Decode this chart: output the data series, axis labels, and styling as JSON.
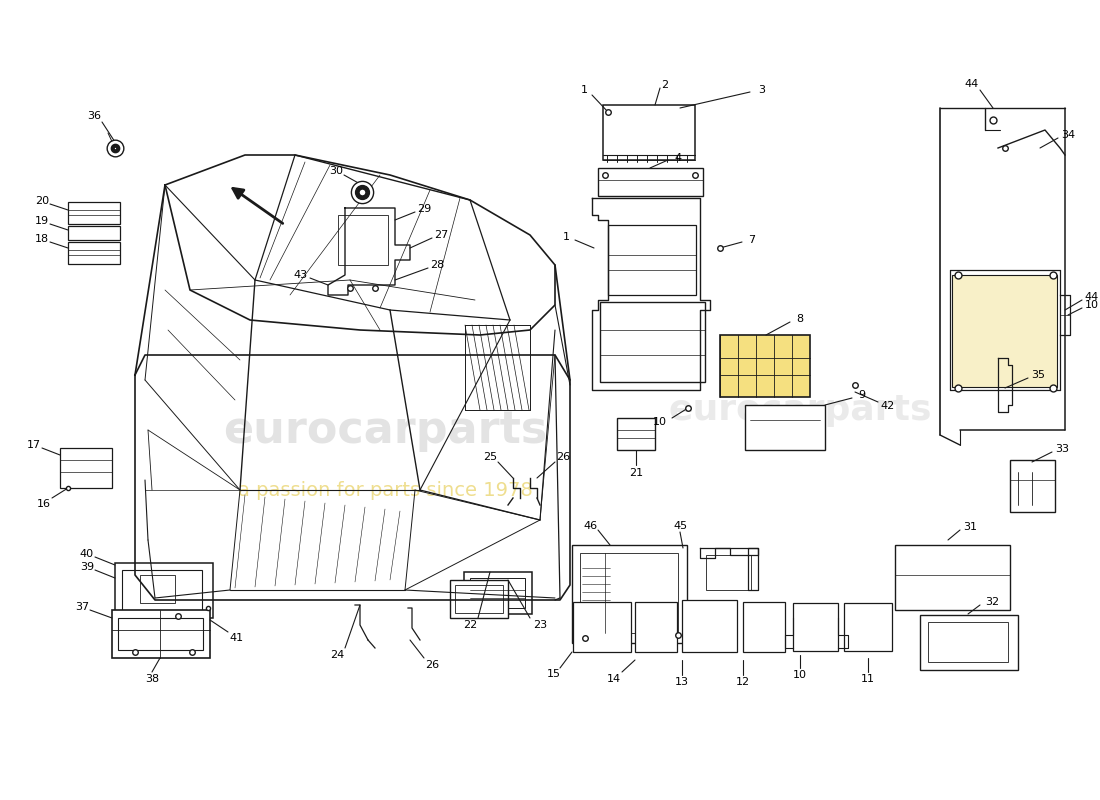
{
  "bg_color": "#ffffff",
  "line_color": "#1a1a1a",
  "watermark1": "eurocarparts",
  "watermark2": "a passion for parts since 1978",
  "fs_label": 8.0
}
